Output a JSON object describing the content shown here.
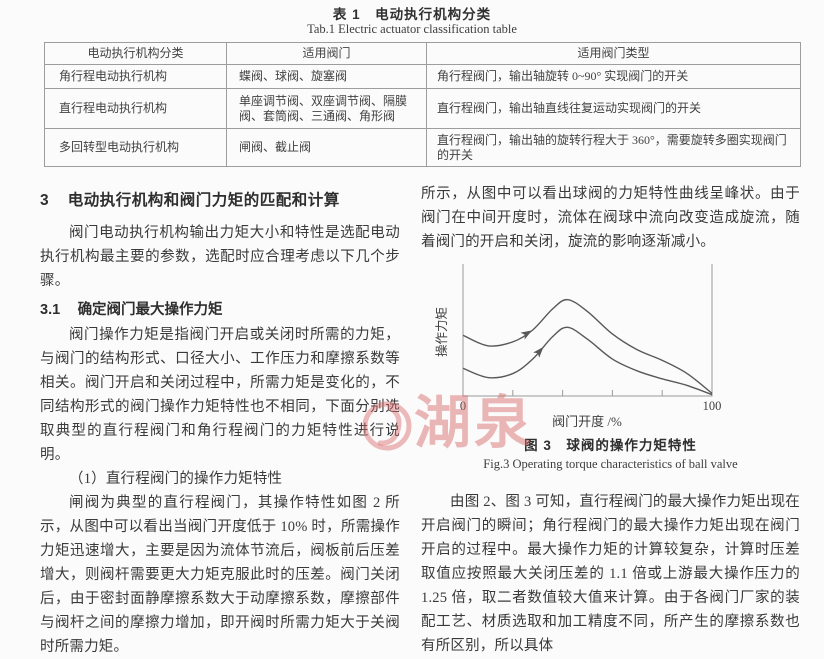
{
  "table": {
    "title_cn": "表 1　电动执行机构分类",
    "title_en": "Tab.1  Electric actuator classification table",
    "headers": [
      "电动执行机构分类",
      "适用阀门",
      "适用阀门类型"
    ],
    "rows": [
      [
        "角行程电动执行机构",
        "蝶阀、球阀、旋塞阀",
        "角行程阀门，输出轴旋转 0~90° 实现阀门的开关"
      ],
      [
        "直行程电动执行机构",
        "单座调节阀、双座调节阀、隔膜阀、套筒阀、三通阀、角形阀",
        "直行程阀门，输出轴直线往复运动实现阀门的开关"
      ],
      [
        "多回转型电动执行机构",
        "闸阀、截止阀",
        "直行程阀门，输出轴的旋转行程大于 360°，需要旋转多圈实现阀门的开关"
      ]
    ]
  },
  "left_column": {
    "section_number": "3",
    "section_heading": "电动执行机构和阀门力矩的匹配和计算",
    "para1": "阀门电动执行机构输出力矩大小和特性是选配电动执行机构最主要的参数，选配时应合理考虑以下几个步骤。",
    "subsection_number": "3.1",
    "subsection_heading": "确定阀门最大操作力矩",
    "para2": "阀门操作力矩是指阀门开启或关闭时所需的力矩，与阀门的结构形式、口径大小、工作压力和摩擦系数等相关。阀门开启和关闭过程中，所需力矩是变化的，不同结构形式的阀门操作力矩特性也不相同，下面分别选取典型的直行程阀门和角行程阀门的力矩特性进行说明。",
    "item_heading": "（1）直行程阀门的操作力矩特性",
    "para3": "闸阀为典型的直行程阀门，其操作特性如图 2 所示，从图中可以看出当阀门开度低于 10% 时，所需操作力矩迅速增大，主要是因为流体节流后，阀板前后压差增大，则阀杆需要更大力矩克服此时的压差。阀门关闭后，由于密封面静摩擦系数大于动摩擦系数，摩擦部件与阀杆之间的摩擦力增加，即开阀时所需力矩大于关阀时所需力矩。"
  },
  "right_column": {
    "para1": "所示，从图中可以看出球阀的力矩特性曲线呈峰状。由于阀门在中间开度时，流体在阀球中流向改变造成旋流，随着阀门的开启和关闭，旋流的影响逐渐减小。",
    "figure_caption_cn": "图 3　球阀的操作力矩特性",
    "figure_caption_en": "Fig.3  Operating torque characteristics of ball valve",
    "para2": "由图 2、图 3 可知，直行程阀门的最大操作力矩出现在开启阀门的瞬间；角行程阀门的最大操作力矩出现在阀门开启的过程中。最大操作力矩的计算较复杂，计算时压差取值应按照最大关闭压差的 1.1 倍或上游最大操作压力的 1.25 倍，取二者数值较大值来计算。由于各阀门厂家的装配工艺、材质选取和加工精度不同，所产生的摩擦系数也有所区别，所以具体"
  },
  "chart_data": {
    "type": "line",
    "title": "图 3 球阀的操作力矩特性 (Fig.3 Operating torque characteristics of ball valve)",
    "xlabel": "阀门开度 /%",
    "ylabel": "操作力矩",
    "xlim": [
      0,
      100
    ],
    "ylim": [
      0,
      1
    ],
    "grid": false,
    "legend_position": "none",
    "frame_sides": [
      "left",
      "bottom",
      "right"
    ],
    "x_tick_positions": [
      20,
      40,
      60,
      80
    ],
    "x_tick_labels_shown": [
      "0",
      "100"
    ],
    "axis_color": "#9a9a9a",
    "curve_color": "#585858",
    "series": [
      {
        "name": "upper-torque-curve",
        "arrow_x": 26,
        "x": [
          0,
          10,
          20,
          28,
          36,
          42,
          50,
          60,
          70,
          80,
          90,
          100
        ],
        "y": [
          0.46,
          0.38,
          0.41,
          0.5,
          0.66,
          0.73,
          0.64,
          0.47,
          0.35,
          0.27,
          0.17,
          0.02
        ]
      },
      {
        "name": "lower-torque-curve",
        "arrow_x": 31,
        "x": [
          0,
          10,
          20,
          28,
          36,
          42,
          50,
          60,
          70,
          80,
          90,
          100
        ],
        "y": [
          0.21,
          0.14,
          0.17,
          0.28,
          0.45,
          0.52,
          0.43,
          0.28,
          0.19,
          0.13,
          0.08,
          0.01
        ]
      }
    ]
  },
  "watermark": {
    "text": "湖泉",
    "color": "rgba(214,104,104,0.48)"
  }
}
